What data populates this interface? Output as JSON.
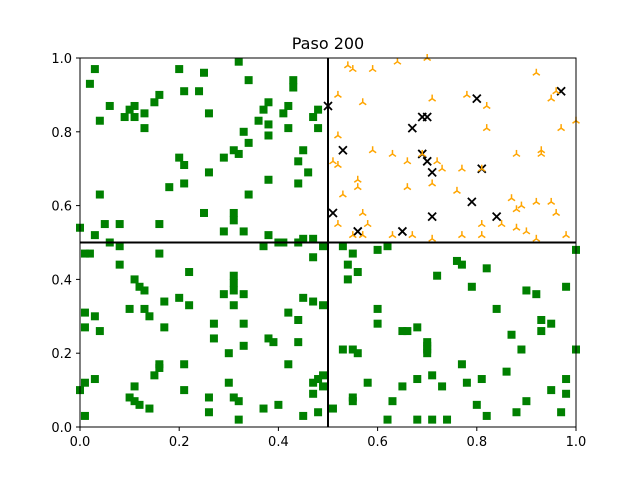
{
  "chart_data": {
    "type": "scatter",
    "title": "Paso 200",
    "xlabel": "",
    "ylabel": "",
    "xlim": [
      0,
      1
    ],
    "ylim": [
      0,
      1
    ],
    "xticks": [
      "0.0",
      "0.2",
      "0.4",
      "0.6",
      "0.8",
      "1.0"
    ],
    "yticks": [
      "0.0",
      "0.2",
      "0.4",
      "0.6",
      "0.8",
      "1.0"
    ],
    "grid": false,
    "legend": "none",
    "dividers": {
      "x": 0.5,
      "y": 0.5
    },
    "series": [
      {
        "marker": "square",
        "color": "#008000",
        "points": [
          [
            0.03,
            0.97
          ],
          [
            0.02,
            0.93
          ],
          [
            0.04,
            0.83
          ],
          [
            0.06,
            0.87
          ],
          [
            0.09,
            0.84
          ],
          [
            0.1,
            0.86
          ],
          [
            0.11,
            0.84
          ],
          [
            0.11,
            0.87
          ],
          [
            0.13,
            0.85
          ],
          [
            0.13,
            0.81
          ],
          [
            0.15,
            0.88
          ],
          [
            0.16,
            0.9
          ],
          [
            0.2,
            0.97
          ],
          [
            0.21,
            0.91
          ],
          [
            0.24,
            0.91
          ],
          [
            0.25,
            0.96
          ],
          [
            0.26,
            0.85
          ],
          [
            0.32,
            0.99
          ],
          [
            0.34,
            0.94
          ],
          [
            0.38,
            0.88
          ],
          [
            0.37,
            0.86
          ],
          [
            0.36,
            0.83
          ],
          [
            0.33,
            0.8
          ],
          [
            0.34,
            0.77
          ],
          [
            0.43,
            0.94
          ],
          [
            0.43,
            0.92
          ],
          [
            0.42,
            0.87
          ],
          [
            0.41,
            0.85
          ],
          [
            0.42,
            0.81
          ],
          [
            0.47,
            0.84
          ],
          [
            0.48,
            0.81
          ],
          [
            0.48,
            0.86
          ],
          [
            0.45,
            0.75
          ],
          [
            0.44,
            0.72
          ],
          [
            0.46,
            0.69
          ],
          [
            0.44,
            0.66
          ],
          [
            0.2,
            0.73
          ],
          [
            0.21,
            0.71
          ],
          [
            0.18,
            0.65
          ],
          [
            0.21,
            0.66
          ],
          [
            0.26,
            0.69
          ],
          [
            0.29,
            0.73
          ],
          [
            0.31,
            0.75
          ],
          [
            0.32,
            0.74
          ],
          [
            0.38,
            0.79
          ],
          [
            0.38,
            0.82
          ],
          [
            0.38,
            0.67
          ],
          [
            0.34,
            0.63
          ],
          [
            0.31,
            0.58
          ],
          [
            0.31,
            0.56
          ],
          [
            0.29,
            0.53
          ],
          [
            0.25,
            0.58
          ],
          [
            0.16,
            0.55
          ],
          [
            0.05,
            0.55
          ],
          [
            0.08,
            0.55
          ],
          [
            0.06,
            0.5
          ],
          [
            0.08,
            0.49
          ],
          [
            0.03,
            0.52
          ],
          [
            0.0,
            0.54
          ],
          [
            0.04,
            0.63
          ],
          [
            0.33,
            0.53
          ],
          [
            0.38,
            0.52
          ],
          [
            0.4,
            0.5
          ],
          [
            0.41,
            0.5
          ],
          [
            0.37,
            0.49
          ],
          [
            0.44,
            0.5
          ],
          [
            0.45,
            0.51
          ],
          [
            0.47,
            0.51
          ],
          [
            0.47,
            0.46
          ],
          [
            0.49,
            0.49
          ],
          [
            0.01,
            0.47
          ],
          [
            0.02,
            0.47
          ],
          [
            0.08,
            0.44
          ],
          [
            0.11,
            0.4
          ],
          [
            0.13,
            0.37
          ],
          [
            0.16,
            0.47
          ],
          [
            0.12,
            0.38
          ],
          [
            0.17,
            0.34
          ],
          [
            0.1,
            0.32
          ],
          [
            0.13,
            0.32
          ],
          [
            0.14,
            0.3
          ],
          [
            0.17,
            0.27
          ],
          [
            0.22,
            0.42
          ],
          [
            0.22,
            0.33
          ],
          [
            0.2,
            0.35
          ],
          [
            0.27,
            0.28
          ],
          [
            0.27,
            0.24
          ],
          [
            0.3,
            0.2
          ],
          [
            0.29,
            0.36
          ],
          [
            0.31,
            0.41
          ],
          [
            0.31,
            0.39
          ],
          [
            0.31,
            0.37
          ],
          [
            0.33,
            0.36
          ],
          [
            0.31,
            0.33
          ],
          [
            0.33,
            0.28
          ],
          [
            0.33,
            0.22
          ],
          [
            0.38,
            0.24
          ],
          [
            0.39,
            0.23
          ],
          [
            0.42,
            0.31
          ],
          [
            0.44,
            0.29
          ],
          [
            0.44,
            0.23
          ],
          [
            0.42,
            0.17
          ],
          [
            0.45,
            0.35
          ],
          [
            0.47,
            0.34
          ],
          [
            0.49,
            0.33
          ],
          [
            0.49,
            0.14
          ],
          [
            0.01,
            0.31
          ],
          [
            0.01,
            0.27
          ],
          [
            0.03,
            0.3
          ],
          [
            0.04,
            0.26
          ],
          [
            0.01,
            0.12
          ],
          [
            0.03,
            0.13
          ],
          [
            0.0,
            0.1
          ],
          [
            0.01,
            0.03
          ],
          [
            0.11,
            0.11
          ],
          [
            0.11,
            0.07
          ],
          [
            0.1,
            0.08
          ],
          [
            0.12,
            0.06
          ],
          [
            0.14,
            0.05
          ],
          [
            0.15,
            0.14
          ],
          [
            0.16,
            0.16
          ],
          [
            0.16,
            0.17
          ],
          [
            0.21,
            0.17
          ],
          [
            0.21,
            0.1
          ],
          [
            0.26,
            0.08
          ],
          [
            0.26,
            0.04
          ],
          [
            0.3,
            0.12
          ],
          [
            0.31,
            0.08
          ],
          [
            0.32,
            0.07
          ],
          [
            0.32,
            0.02
          ],
          [
            0.37,
            0.05
          ],
          [
            0.4,
            0.06
          ],
          [
            0.45,
            0.03
          ],
          [
            0.47,
            0.12
          ],
          [
            0.48,
            0.13
          ],
          [
            0.49,
            0.11
          ],
          [
            0.48,
            0.04
          ],
          [
            0.47,
            0.09
          ],
          [
            0.53,
            0.49
          ],
          [
            0.55,
            0.47
          ],
          [
            0.54,
            0.44
          ],
          [
            0.56,
            0.42
          ],
          [
            0.54,
            0.4
          ],
          [
            0.6,
            0.48
          ],
          [
            0.62,
            0.49
          ],
          [
            0.6,
            0.32
          ],
          [
            0.6,
            0.28
          ],
          [
            0.65,
            0.26
          ],
          [
            0.66,
            0.26
          ],
          [
            0.68,
            0.27
          ],
          [
            0.72,
            0.41
          ],
          [
            0.76,
            0.45
          ],
          [
            0.77,
            0.44
          ],
          [
            0.79,
            0.38
          ],
          [
            0.82,
            0.43
          ],
          [
            0.84,
            0.32
          ],
          [
            0.87,
            0.25
          ],
          [
            0.89,
            0.21
          ],
          [
            0.9,
            0.37
          ],
          [
            0.92,
            0.36
          ],
          [
            0.93,
            0.29
          ],
          [
            0.95,
            0.28
          ],
          [
            0.93,
            0.26
          ],
          [
            0.98,
            0.38
          ],
          [
            1.0,
            0.48
          ],
          [
            1.0,
            0.21
          ],
          [
            0.98,
            0.13
          ],
          [
            0.98,
            0.09
          ],
          [
            0.97,
            0.04
          ],
          [
            0.95,
            0.1
          ],
          [
            0.9,
            0.07
          ],
          [
            0.88,
            0.04
          ],
          [
            0.86,
            0.15
          ],
          [
            0.82,
            0.03
          ],
          [
            0.8,
            0.06
          ],
          [
            0.81,
            0.13
          ],
          [
            0.78,
            0.12
          ],
          [
            0.77,
            0.17
          ],
          [
            0.74,
            0.02
          ],
          [
            0.73,
            0.11
          ],
          [
            0.71,
            0.14
          ],
          [
            0.7,
            0.23
          ],
          [
            0.7,
            0.22
          ],
          [
            0.7,
            0.21
          ],
          [
            0.7,
            0.2
          ],
          [
            0.68,
            0.13
          ],
          [
            0.65,
            0.11
          ],
          [
            0.63,
            0.07
          ],
          [
            0.62,
            0.02
          ],
          [
            0.58,
            0.12
          ],
          [
            0.56,
            0.2
          ],
          [
            0.55,
            0.21
          ],
          [
            0.53,
            0.21
          ],
          [
            0.55,
            0.08
          ],
          [
            0.55,
            0.07
          ],
          [
            0.51,
            0.05
          ],
          [
            0.71,
            0.02
          ],
          [
            0.68,
            0.02
          ]
        ]
      },
      {
        "marker": "x",
        "color": "#000000",
        "points": [
          [
            0.5,
            0.87
          ],
          [
            0.53,
            0.75
          ],
          [
            0.51,
            0.58
          ],
          [
            0.56,
            0.53
          ],
          [
            0.65,
            0.53
          ],
          [
            0.67,
            0.81
          ],
          [
            0.69,
            0.84
          ],
          [
            0.7,
            0.84
          ],
          [
            0.69,
            0.74
          ],
          [
            0.7,
            0.72
          ],
          [
            0.71,
            0.69
          ],
          [
            0.71,
            0.57
          ],
          [
            0.79,
            0.61
          ],
          [
            0.81,
            0.7
          ],
          [
            0.8,
            0.89
          ],
          [
            0.84,
            0.57
          ],
          [
            0.97,
            0.91
          ]
        ]
      },
      {
        "marker": "tri",
        "color": "#FFA500",
        "points": [
          [
            0.54,
            0.98
          ],
          [
            0.55,
            0.97
          ],
          [
            0.59,
            0.97
          ],
          [
            0.64,
            0.99
          ],
          [
            0.7,
            1.0
          ],
          [
            0.71,
            0.89
          ],
          [
            0.78,
            0.9
          ],
          [
            0.82,
            0.87
          ],
          [
            0.82,
            0.81
          ],
          [
            0.92,
            0.96
          ],
          [
            0.95,
            0.89
          ],
          [
            0.96,
            0.91
          ],
          [
            0.97,
            0.81
          ],
          [
            1.0,
            0.83
          ],
          [
            0.93,
            0.75
          ],
          [
            0.93,
            0.74
          ],
          [
            0.88,
            0.74
          ],
          [
            0.81,
            0.7
          ],
          [
            0.77,
            0.7
          ],
          [
            0.73,
            0.7
          ],
          [
            0.72,
            0.72
          ],
          [
            0.69,
            0.74
          ],
          [
            0.66,
            0.72
          ],
          [
            0.66,
            0.65
          ],
          [
            0.63,
            0.74
          ],
          [
            0.59,
            0.75
          ],
          [
            0.56,
            0.67
          ],
          [
            0.53,
            0.63
          ],
          [
            0.56,
            0.65
          ],
          [
            0.57,
            0.58
          ],
          [
            0.52,
            0.55
          ],
          [
            0.55,
            0.52
          ],
          [
            0.57,
            0.52
          ],
          [
            0.63,
            0.52
          ],
          [
            0.71,
            0.51
          ],
          [
            0.77,
            0.52
          ],
          [
            0.81,
            0.52
          ],
          [
            0.85,
            0.55
          ],
          [
            0.87,
            0.62
          ],
          [
            0.88,
            0.59
          ],
          [
            0.89,
            0.6
          ],
          [
            0.88,
            0.54
          ],
          [
            0.9,
            0.53
          ],
          [
            0.92,
            0.51
          ],
          [
            0.92,
            0.61
          ],
          [
            0.95,
            0.61
          ],
          [
            0.96,
            0.58
          ],
          [
            0.98,
            0.52
          ],
          [
            0.81,
            0.55
          ],
          [
            0.76,
            0.64
          ],
          [
            0.71,
            0.66
          ],
          [
            0.67,
            0.52
          ],
          [
            0.58,
            0.55
          ],
          [
            0.52,
            0.71
          ],
          [
            0.52,
            0.79
          ],
          [
            0.51,
            0.72
          ],
          [
            0.52,
            0.9
          ],
          [
            0.57,
            0.88
          ]
        ]
      }
    ]
  }
}
